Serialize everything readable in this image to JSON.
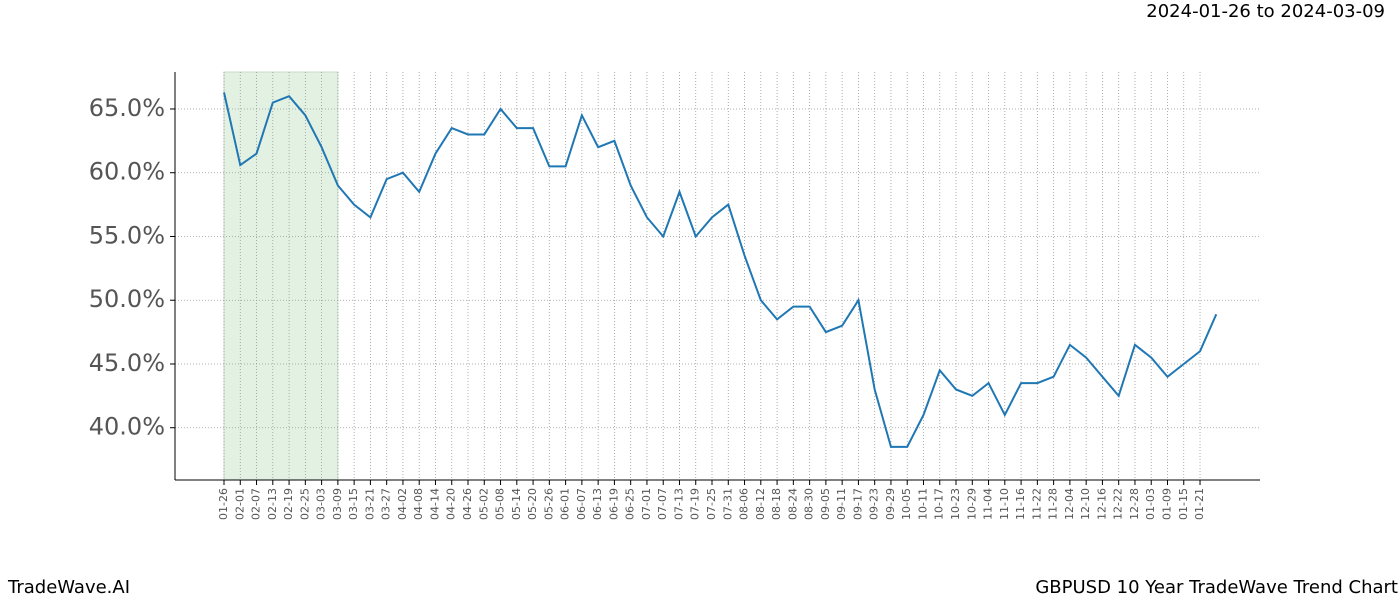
{
  "chart_data": {
    "type": "line",
    "title": "2024-01-26 to 2024-03-09",
    "footer_left": "TradeWave.AI",
    "footer_right": "GBPUSD 10 Year TradeWave Trend Chart",
    "categories": [
      "01-26",
      "02-01",
      "02-07",
      "02-13",
      "02-19",
      "02-25",
      "03-03",
      "03-09",
      "03-15",
      "03-21",
      "03-27",
      "04-02",
      "04-08",
      "04-14",
      "04-20",
      "04-26",
      "05-02",
      "05-08",
      "05-14",
      "05-20",
      "05-26",
      "06-01",
      "06-07",
      "06-13",
      "06-19",
      "06-25",
      "07-01",
      "07-07",
      "07-13",
      "07-19",
      "07-25",
      "07-31",
      "08-06",
      "08-12",
      "08-18",
      "08-24",
      "08-30",
      "09-05",
      "09-11",
      "09-17",
      "09-23",
      "09-29",
      "10-05",
      "10-11",
      "10-17",
      "10-23",
      "10-29",
      "11-04",
      "11-10",
      "11-16",
      "11-22",
      "11-28",
      "12-04",
      "12-10",
      "12-16",
      "12-22",
      "12-28",
      "01-03",
      "01-09",
      "01-15",
      "01-21",
      null
    ],
    "series": [
      {
        "name": "GBPUSD",
        "color": "#1f77b4",
        "values": [
          66.3,
          60.6,
          61.5,
          65.5,
          66.0,
          64.5,
          62.0,
          59.0,
          57.5,
          56.5,
          59.5,
          60.0,
          58.5,
          61.5,
          63.5,
          63.0,
          63.0,
          65.0,
          63.5,
          63.5,
          60.5,
          60.5,
          64.5,
          62.0,
          62.5,
          59.0,
          56.5,
          55.0,
          58.5,
          55.0,
          56.5,
          57.5,
          53.5,
          50.0,
          48.5,
          49.5,
          49.5,
          47.5,
          48.0,
          50.0,
          43.0,
          38.5,
          38.5,
          41.0,
          44.5,
          43.0,
          42.5,
          43.5,
          41.0,
          43.5,
          43.5,
          44.0,
          46.5,
          45.5,
          44.0,
          42.5,
          46.5,
          45.5,
          44.0,
          45.0,
          46.0,
          48.9
        ]
      }
    ],
    "highlight_range": [
      "01-26",
      "03-09"
    ],
    "highlight_color": "#e3f1e3",
    "ylim": [
      35.9,
      67.9
    ],
    "yticks": [
      {
        "value": 40,
        "label": "40.0%"
      },
      {
        "value": 45,
        "label": "45.0%"
      },
      {
        "value": 50,
        "label": "50.0%"
      },
      {
        "value": 55,
        "label": "55.0%"
      },
      {
        "value": 60,
        "label": "60.0%"
      },
      {
        "value": 65,
        "label": "65.0%"
      }
    ],
    "grid": true
  }
}
